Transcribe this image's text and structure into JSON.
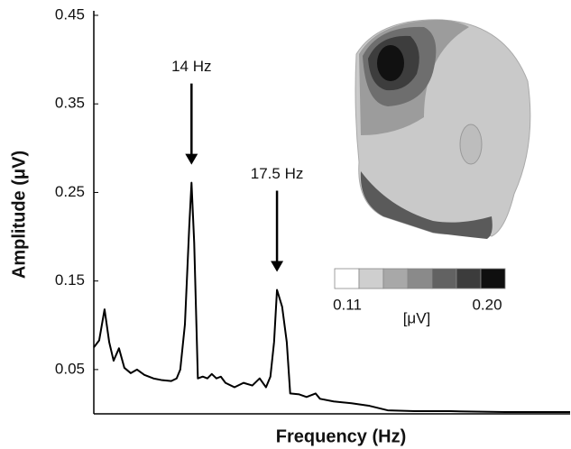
{
  "chart_data": {
    "type": "line",
    "xlabel": "Frequency (Hz)",
    "ylabel": "Amplitude (μV)",
    "xlim": [
      10,
      29.5
    ],
    "ylim": [
      0,
      0.45
    ],
    "yticks": [
      0.05,
      0.15,
      0.25,
      0.35,
      0.45
    ],
    "series": [
      {
        "color": "#000000",
        "x": [
          10.0,
          10.22,
          10.44,
          10.63,
          10.81,
          11.03,
          11.25,
          11.51,
          11.77,
          12.07,
          12.44,
          12.8,
          13.17,
          13.39,
          13.54,
          13.73,
          13.91,
          14.0,
          14.11,
          14.26,
          14.46,
          14.65,
          14.83,
          15.02,
          15.2,
          15.39,
          15.76,
          16.13,
          16.49,
          16.79,
          17.05,
          17.23,
          17.38,
          17.5,
          17.71,
          17.9,
          18.04,
          18.41,
          18.71,
          19.08,
          19.26,
          19.82,
          20.55,
          21.29,
          22.03,
          23.14,
          24.61,
          26.83,
          29.5
        ],
        "values": [
          0.075,
          0.083,
          0.118,
          0.081,
          0.06,
          0.074,
          0.052,
          0.046,
          0.05,
          0.044,
          0.04,
          0.038,
          0.037,
          0.04,
          0.05,
          0.101,
          0.213,
          0.261,
          0.193,
          0.04,
          0.042,
          0.04,
          0.045,
          0.04,
          0.042,
          0.035,
          0.03,
          0.035,
          0.032,
          0.04,
          0.03,
          0.042,
          0.081,
          0.14,
          0.121,
          0.081,
          0.023,
          0.022,
          0.019,
          0.023,
          0.017,
          0.014,
          0.012,
          0.009,
          0.004,
          0.003,
          0.003,
          0.002,
          0.002
        ]
      }
    ],
    "annotations": [
      {
        "text": "14 Hz",
        "x": 14
      },
      {
        "text": "17.5 Hz",
        "x": 17.5
      }
    ],
    "colorbar": {
      "label": "[μV]",
      "colors": [
        "#ffffff",
        "#cfcfcf",
        "#a8a8a8",
        "#8a8a8a",
        "#626262",
        "#3c3c3c",
        "#0f0f0f"
      ],
      "ticks": [
        0.11,
        {
          "value": 0.2,
          "label": "0.20"
        }
      ]
    }
  }
}
